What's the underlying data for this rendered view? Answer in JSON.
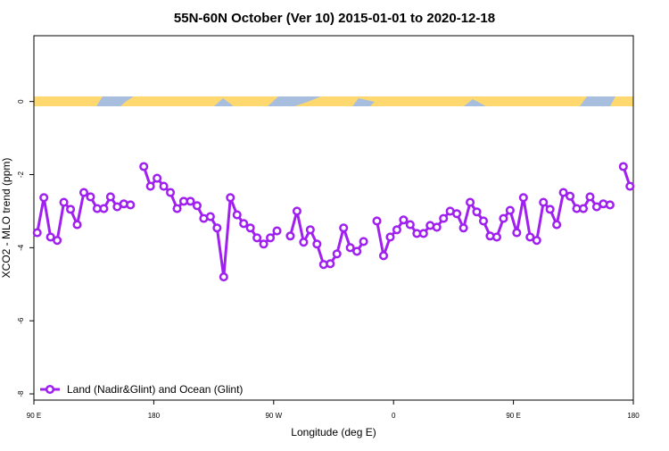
{
  "chart_data": {
    "type": "line",
    "title": "55N-60N October (Ver 10)   2015-01-01 to 2020-12-18",
    "x_label": "Longitude (deg E)",
    "y_label": "XCO2 - MLO trend (ppm)",
    "xlim": [
      90,
      540
    ],
    "xticks": [
      {
        "value": 90,
        "label": "90 E"
      },
      {
        "value": 180,
        "label": "180"
      },
      {
        "value": 270,
        "label": "90 W"
      },
      {
        "value": 360,
        "label": "0"
      },
      {
        "value": 450,
        "label": "90 E"
      },
      {
        "value": 540,
        "label": "180"
      }
    ],
    "ylim": [
      -8.17,
      1.8
    ],
    "yticks": [
      0,
      -2,
      -4,
      -6,
      -8
    ],
    "legend": "bottom-left",
    "x": [
      92.5,
      97.5,
      102.5,
      107.5,
      112.5,
      117.5,
      122.5,
      127.5,
      132.5,
      137.5,
      142.5,
      147.5,
      152.5,
      157.5,
      162.5,
      167.5,
      172.5,
      177.5,
      182.5,
      187.5,
      192.5,
      197.5,
      202.5,
      207.5,
      212.5,
      217.5,
      222.5,
      227.5,
      232.5,
      237.5,
      242.5,
      247.5,
      252.5,
      257.5,
      262.5,
      267.5,
      272.5,
      277.5,
      282.5,
      287.5,
      292.5,
      297.5,
      302.5,
      307.5,
      312.5,
      317.5,
      322.5,
      327.5,
      332.5,
      337.5,
      342.5,
      347.5,
      352.5,
      357.5,
      362.5,
      367.5,
      372.5,
      377.5,
      382.5,
      387.5,
      392.5,
      397.5,
      402.5,
      407.5,
      412.5,
      417.5,
      422.5,
      427.5,
      432.5,
      437.5,
      442.5,
      447.5,
      452.5,
      457.5,
      462.5,
      467.5,
      472.5,
      477.5,
      482.5,
      487.5,
      492.5,
      497.5,
      502.5,
      507.5,
      512.5,
      517.5,
      522.5,
      527.5,
      532.5,
      537.5
    ],
    "series": [
      {
        "name": "Land (Nadir&Glint) and Ocean (Glint)",
        "color": "#a020f0",
        "values": [
          -3.59,
          -2.63,
          -3.71,
          -3.8,
          -2.76,
          -2.95,
          -3.37,
          -2.49,
          -2.61,
          -2.93,
          -2.93,
          -2.61,
          -2.88,
          -2.8,
          -2.83,
          null,
          -1.78,
          -2.32,
          -2.1,
          -2.32,
          -2.49,
          -2.93,
          -2.73,
          -2.73,
          -2.85,
          -3.2,
          -3.15,
          -3.46,
          -4.8,
          -2.63,
          -3.1,
          -3.34,
          -3.46,
          -3.73,
          -3.9,
          -3.73,
          -3.54,
          null,
          -3.68,
          -3.0,
          -3.85,
          -3.51,
          -3.9,
          -4.46,
          -4.44,
          -4.17,
          -3.46,
          -4.0,
          -4.1,
          -3.83,
          null,
          -3.27,
          -4.22,
          -3.71,
          -3.51,
          -3.24,
          -3.37,
          -3.61,
          -3.61,
          -3.39,
          -3.44,
          -3.2,
          -3.0,
          -3.07,
          -3.46,
          -2.76,
          -3.02,
          -3.27,
          -3.68,
          -3.71,
          -3.2,
          -2.98,
          -3.59,
          -2.63,
          -3.71,
          -3.8,
          -2.76,
          -2.95,
          -3.37,
          -2.49,
          -2.59,
          -2.93,
          -2.93,
          -2.61,
          -2.88,
          -2.8,
          -2.83,
          null,
          -1.78,
          -2.32
        ]
      }
    ]
  }
}
